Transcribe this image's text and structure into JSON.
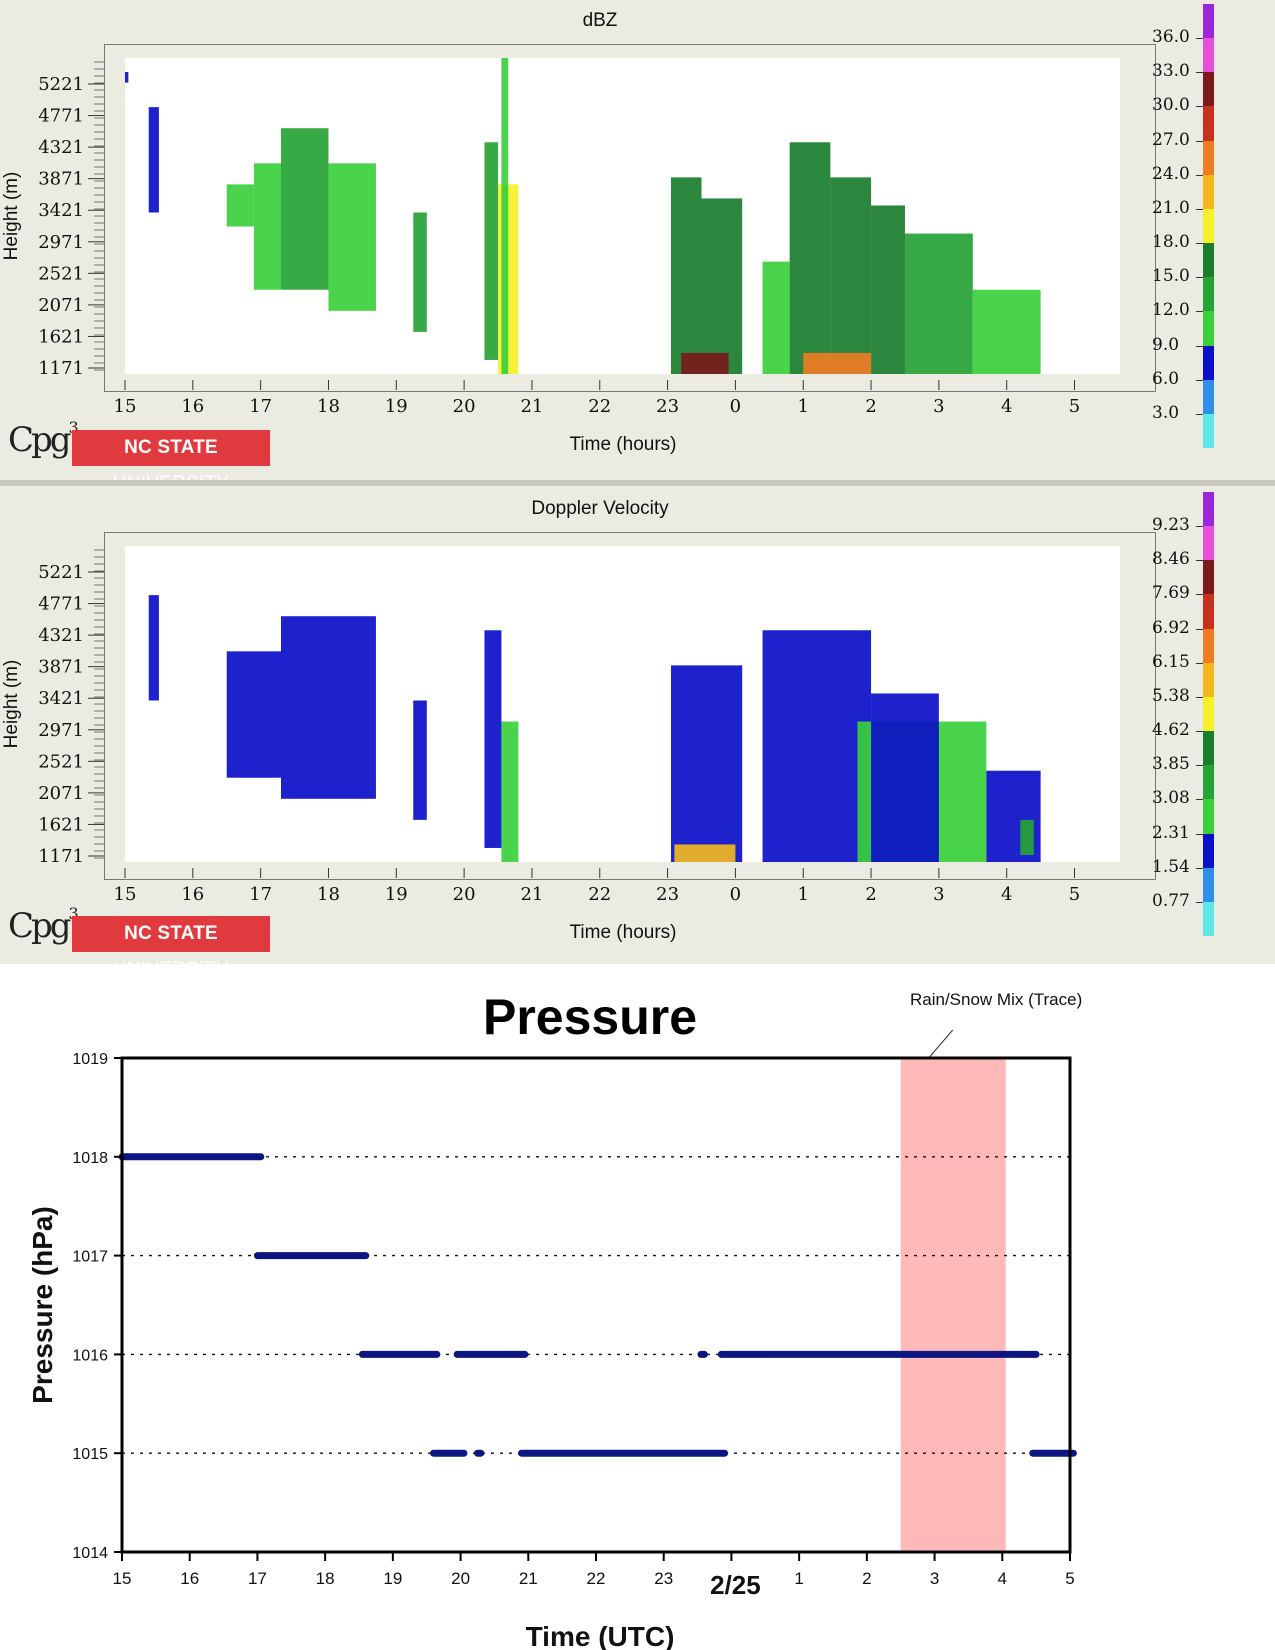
{
  "chart_data": [
    {
      "type": "heatmap",
      "title": "dBZ",
      "xlabel": "Time (hours)",
      "ylabel": "Height (m)",
      "x_ticks": [
        "15",
        "16",
        "17",
        "18",
        "19",
        "20",
        "21",
        "22",
        "23",
        "0",
        "1",
        "2",
        "3",
        "4",
        "5"
      ],
      "y_ticks": [
        "5221",
        "4771",
        "4321",
        "3871",
        "3421",
        "2971",
        "2521",
        "2071",
        "1621",
        "1171"
      ],
      "xlim": [
        15,
        29
      ],
      "ylim": [
        1000,
        5500
      ],
      "colorbar": {
        "labels": [
          "36.0",
          "33.0",
          "30.0",
          "27.0",
          "24.0",
          "21.0",
          "18.0",
          "15.0",
          "12.0",
          "9.0",
          "6.0",
          "3.0"
        ],
        "colors": [
          "#9b27d8",
          "#e84fd8",
          "#7a1a1a",
          "#c8301e",
          "#ee7c24",
          "#f2b81e",
          "#f5f028",
          "#1a7d2e",
          "#26a336",
          "#39d03c",
          "#0a0fc8",
          "#2f8ee8",
          "#5fe6e6"
        ]
      },
      "cells": [
        {
          "t0": 15.0,
          "t1": 15.05,
          "z0": 5150,
          "z1": 5300,
          "v": 4
        },
        {
          "t0": 15.35,
          "t1": 15.5,
          "z0": 3300,
          "z1": 4800,
          "v": 5
        },
        {
          "t0": 16.5,
          "t1": 16.9,
          "z0": 3100,
          "z1": 3700,
          "v": 6
        },
        {
          "t0": 16.9,
          "t1": 17.3,
          "z0": 2200,
          "z1": 4000,
          "v": 8
        },
        {
          "t0": 17.3,
          "t1": 18.0,
          "z0": 2200,
          "z1": 4500,
          "v": 9
        },
        {
          "t0": 18.0,
          "t1": 18.7,
          "z0": 1900,
          "z1": 4000,
          "v": 8
        },
        {
          "t0": 19.25,
          "t1": 19.45,
          "z0": 1600,
          "z1": 3300,
          "v": 9
        },
        {
          "t0": 20.3,
          "t1": 20.5,
          "z0": 1200,
          "z1": 4300,
          "v": 11
        },
        {
          "t0": 20.5,
          "t1": 20.8,
          "z0": 1000,
          "z1": 3700,
          "v": 16
        },
        {
          "t0": 20.55,
          "t1": 20.65,
          "z0": 1000,
          "z1": 5500,
          "v": 7
        },
        {
          "t0": 23.05,
          "t1": 23.5,
          "z0": 1000,
          "z1": 3800,
          "v": 14
        },
        {
          "t0": 23.5,
          "t1": 24.1,
          "z0": 1000,
          "z1": 3500,
          "v": 12
        },
        {
          "t0": 23.2,
          "t1": 23.9,
          "z0": 1000,
          "z1": 1300,
          "v": 28
        },
        {
          "t0": 24.4,
          "t1": 24.8,
          "z0": 1000,
          "z1": 2600,
          "v": 8
        },
        {
          "t0": 24.8,
          "t1": 25.4,
          "z0": 1000,
          "z1": 4300,
          "v": 14
        },
        {
          "t0": 25.4,
          "t1": 26.0,
          "z0": 1000,
          "z1": 3800,
          "v": 13
        },
        {
          "t0": 26.0,
          "t1": 26.5,
          "z0": 1000,
          "z1": 3400,
          "v": 12
        },
        {
          "t0": 26.5,
          "t1": 27.5,
          "z0": 1000,
          "z1": 3000,
          "v": 11
        },
        {
          "t0": 27.5,
          "t1": 28.5,
          "z0": 1000,
          "z1": 2200,
          "v": 8
        },
        {
          "t0": 25.0,
          "t1": 26.0,
          "z0": 1000,
          "z1": 1300,
          "v": 23
        }
      ]
    },
    {
      "type": "heatmap",
      "title": "Doppler Velocity",
      "xlabel": "Time (hours)",
      "ylabel": "Height (m)",
      "x_ticks": [
        "15",
        "16",
        "17",
        "18",
        "19",
        "20",
        "21",
        "22",
        "23",
        "0",
        "1",
        "2",
        "3",
        "4",
        "5"
      ],
      "y_ticks": [
        "5221",
        "4771",
        "4321",
        "3871",
        "3421",
        "2971",
        "2521",
        "2071",
        "1621",
        "1171"
      ],
      "xlim": [
        15,
        29
      ],
      "ylim": [
        1000,
        5500
      ],
      "colorbar": {
        "labels": [
          "9.23",
          "8.46",
          "7.69",
          "6.92",
          "6.15",
          "5.38",
          "4.62",
          "3.85",
          "3.08",
          "2.31",
          "1.54",
          "0.77"
        ],
        "colors": [
          "#9b27d8",
          "#e84fd8",
          "#7a1a1a",
          "#c8301e",
          "#ee7c24",
          "#f2b81e",
          "#f5f028",
          "#1a7d2e",
          "#26a336",
          "#39d03c",
          "#0a0fc8",
          "#2f8ee8",
          "#5fe6e6"
        ]
      },
      "cells": [
        {
          "t0": 15.35,
          "t1": 15.5,
          "z0": 3300,
          "z1": 4800,
          "v": 1.0
        },
        {
          "t0": 16.5,
          "t1": 17.3,
          "z0": 2200,
          "z1": 4000,
          "v": 1.0
        },
        {
          "t0": 17.3,
          "t1": 18.7,
          "z0": 1900,
          "z1": 4500,
          "v": 1.0
        },
        {
          "t0": 19.25,
          "t1": 19.45,
          "z0": 1600,
          "z1": 3300,
          "v": 1.0
        },
        {
          "t0": 20.3,
          "t1": 20.55,
          "z0": 1200,
          "z1": 4300,
          "v": 1.0
        },
        {
          "t0": 20.55,
          "t1": 20.8,
          "z0": 1000,
          "z1": 3000,
          "v": 1.7
        },
        {
          "t0": 23.05,
          "t1": 24.1,
          "z0": 1000,
          "z1": 3800,
          "v": 1.0
        },
        {
          "t0": 23.1,
          "t1": 24.0,
          "z0": 1000,
          "z1": 1250,
          "v": 4.8
        },
        {
          "t0": 24.4,
          "t1": 26.0,
          "z0": 1000,
          "z1": 4300,
          "v": 1.0
        },
        {
          "t0": 25.8,
          "t1": 27.7,
          "z0": 1000,
          "z1": 3000,
          "v": 1.7
        },
        {
          "t0": 26.0,
          "t1": 27.0,
          "z0": 1000,
          "z1": 3400,
          "v": 1.0
        },
        {
          "t0": 27.7,
          "t1": 28.5,
          "z0": 1000,
          "z1": 2300,
          "v": 1.0
        },
        {
          "t0": 28.2,
          "t1": 28.4,
          "z0": 1100,
          "z1": 1600,
          "v": 2.4
        }
      ]
    },
    {
      "type": "scatter",
      "title": "Pressure",
      "xlabel": "Time (UTC)",
      "ylabel": "Pressure (hPa)",
      "x_ticks": [
        "15",
        "16",
        "17",
        "18",
        "19",
        "20",
        "21",
        "22",
        "23",
        "2/25",
        "1",
        "2",
        "3",
        "4",
        "5"
      ],
      "xlim": [
        15,
        29
      ],
      "ylim": [
        1014,
        1019
      ],
      "y_ticks": [
        "1014",
        "1015",
        "1016",
        "1017",
        "1018",
        "1019"
      ],
      "grid_y": [
        1015,
        1016,
        1017,
        1018
      ],
      "annotation": {
        "text": "Rain/Snow Mix  (Trace)",
        "x0": 26.5,
        "x1": 28.05,
        "color": "#ffb9b9"
      },
      "series_color": "#0b1680",
      "segments": [
        {
          "y": 1018,
          "x0": 15.0,
          "x1": 17.05
        },
        {
          "y": 1017,
          "x0": 17.0,
          "x1": 18.6
        },
        {
          "y": 1016,
          "x0": 18.55,
          "x1": 19.65
        },
        {
          "y": 1016,
          "x0": 19.95,
          "x1": 20.95
        },
        {
          "y": 1016,
          "x0": 23.55,
          "x1": 23.6
        },
        {
          "y": 1016,
          "x0": 23.85,
          "x1": 28.5
        },
        {
          "y": 1015,
          "x0": 19.6,
          "x1": 20.05
        },
        {
          "y": 1015,
          "x0": 20.25,
          "x1": 20.3
        },
        {
          "y": 1015,
          "x0": 20.9,
          "x1": 23.9
        },
        {
          "y": 1015,
          "x0": 28.45,
          "x1": 29.05
        }
      ]
    }
  ],
  "branding": {
    "logo_text": "Cpg",
    "logo_sup": "3",
    "badge_bold": "NC STATE",
    "badge_rest": " UNIVERSITY"
  }
}
